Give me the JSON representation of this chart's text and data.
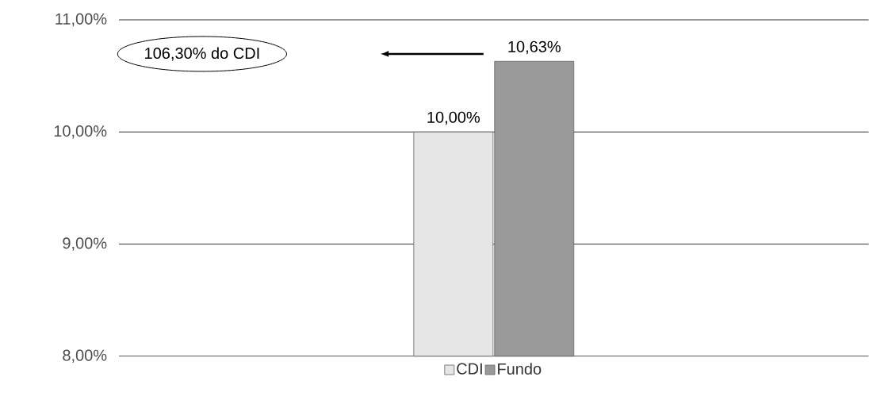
{
  "chart_data": {
    "type": "bar",
    "categories": [
      null
    ],
    "series": [
      {
        "name": "CDI",
        "color": "#e6e6e6",
        "values": [
          10.0
        ],
        "value_labels": [
          "10,00%"
        ]
      },
      {
        "name": "Fundo",
        "color": "#999999",
        "values": [
          10.63
        ],
        "value_labels": [
          "10,63%"
        ]
      }
    ],
    "ylim": [
      8,
      11
    ],
    "yticks": [
      {
        "value": 8,
        "label": "8,00%"
      },
      {
        "value": 9,
        "label": "9,00%"
      },
      {
        "value": 10,
        "label": "10,00%"
      },
      {
        "value": 11,
        "label": "11,00%"
      }
    ],
    "grid": "y",
    "legend": "bottom",
    "annotations": [
      "106,30% do CDI"
    ]
  }
}
